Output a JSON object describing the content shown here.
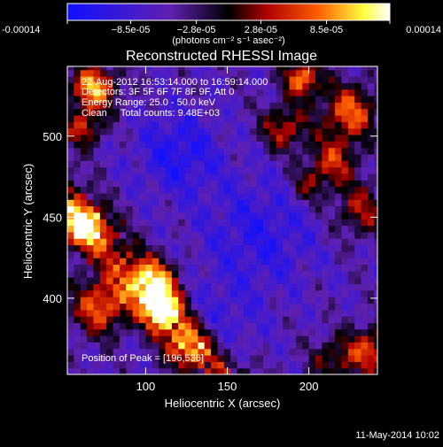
{
  "chart_data": {
    "type": "heatmap",
    "title": "Reconstructed RHESSI Image",
    "xlabel": "Heliocentric X (arcsec)",
    "ylabel": "Heliocentric Y (arcsec)",
    "xlim": [
      52,
      242
    ],
    "ylim": [
      353,
      543
    ],
    "x_ticks": [
      100,
      150,
      200
    ],
    "y_ticks": [
      400,
      450,
      500
    ],
    "colorbar": {
      "min": -0.00014,
      "max": 0.00014,
      "tick_values": [
        -0.00014,
        -8.5e-05,
        -2.8e-05,
        2.8e-05,
        8.5e-05,
        0.00014
      ],
      "tick_labels": [
        "-0.00014",
        "−8.5e-05",
        "−2.8e-05",
        "2.8e-05",
        "8.5e-05",
        "0.00014"
      ],
      "unit_label": "(photons cm⁻² s⁻¹ asec⁻²)",
      "colors": [
        "#1010ff",
        "#6020b0",
        "#000000",
        "#b00000",
        "#ff6000",
        "#ffff40",
        "#ffffff"
      ]
    },
    "annotations": [
      "22-Aug-2012 16:53:14.000 to 16:59:14.000",
      "Detectors: 3F 5F 6F 7F 8F 9F, Att 0",
      "Energy Range: 25.0 - 50.0 keV",
      "Clean     Total counts: 9.48E+03"
    ],
    "peak_label": "Position of Peak = [196,536]",
    "peak": [
      196,
      536
    ],
    "footer_date": "11-May-2014 10:02"
  }
}
